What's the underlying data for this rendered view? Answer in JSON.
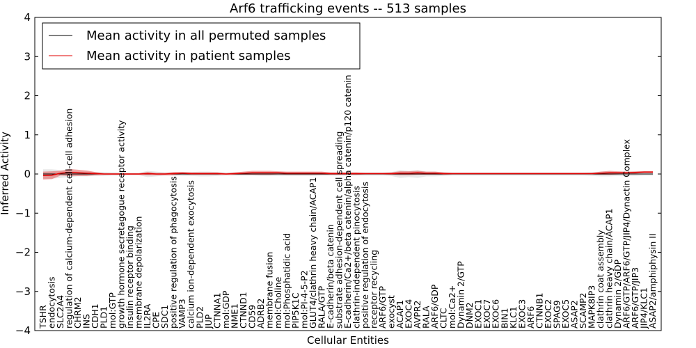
{
  "chart_data": {
    "type": "line",
    "title": "Arf6 trafficking events -- 513 samples",
    "xlabel": "Cellular Entities",
    "ylabel": "Inferred Activity",
    "ylim": [
      -4,
      4
    ],
    "yticks": [
      -4,
      -3,
      -2,
      -1,
      0,
      1,
      2,
      3,
      4
    ],
    "ytick_labels": [
      "−4",
      "−3",
      "−2",
      "−1",
      "0",
      "1",
      "2",
      "3",
      "4"
    ],
    "grid": false,
    "legend": {
      "placement": "top-left",
      "entries": [
        {
          "label": "Mean activity in all permuted samples",
          "color": "#000000"
        },
        {
          "label": "Mean activity in patient samples",
          "color": "#e00000"
        }
      ]
    },
    "categories": [
      "TSHR",
      "endocytosis",
      "SLC2A4",
      "regulation of calcium-dependent cell-cell adhesion",
      "CHRM2",
      "INS",
      "CDH1",
      "PLD1",
      "mol:GTP",
      "growth hormone secretagogue receptor activity",
      "insulin receptor binding",
      "membrane depolarization",
      "IL2RA",
      "CPE",
      "SDC1",
      "positive regulation of phagocytosis",
      "VAMP3",
      "calcium ion-dependent exocytosis",
      "PLD2",
      "JUP",
      "CTNNA1",
      "mol:GDP",
      "NME1",
      "CTNND1",
      "CD59",
      "ADRB2",
      "membrane fusion",
      "mol:Choline",
      "mol:Phosphatidic acid",
      "PIP5K1C",
      "mol:PI-4-5-P2",
      "GLUT4/clathrin heavy chain/ACAP1",
      "RALA/GTP",
      "E-cadherin/beta catenin",
      "substrate adhesion-dependent cell spreading",
      "E-cadherin/Ca2+/beta catenin/alpha catenin/p120 catenin",
      "clathrin-independent pinocytosis",
      "positive regulation of endocytosis",
      "receptor recycling",
      "ARF6/GTP",
      "exocyst",
      "ACAP1",
      "EXOC4",
      "AVPR2",
      "RALA",
      "ARF6/GDP",
      "CLTC",
      "mol:Ca2+",
      "Dynamin 2/GTP",
      "DNM2",
      "EXOC1",
      "EXOC7",
      "EXOC6",
      "BIN1",
      "KLC1",
      "EXOC3",
      "ARF6",
      "CTNNB1",
      "EXOC2",
      "SPAG9",
      "EXOC5",
      "ASAP2",
      "SCAMP2",
      "MAPK8IP3",
      "clathrin coat assembly",
      "clathrin heavy chain/ACAP1",
      "Dynamin 2/GDP",
      "ARF6/GTP/ARF6/GTP/JIP4/Dynactin Complex",
      "ARF6/GTP/JIP3",
      "JIP4/KLC1",
      "ASAP2/amphiphysin II"
    ],
    "series": [
      {
        "name": "Mean activity in all permuted samples",
        "color": "#000000",
        "values": [
          0.0,
          0.0,
          0.0,
          0.0,
          0.0,
          0.0,
          0.0,
          0.0,
          0.0,
          0.0,
          0.0,
          0.0,
          0.0,
          0.0,
          0.0,
          0.0,
          0.0,
          0.0,
          0.0,
          0.0,
          0.0,
          0.0,
          0.0,
          0.0,
          0.0,
          0.0,
          0.0,
          0.0,
          0.0,
          0.0,
          0.0,
          0.0,
          0.0,
          0.0,
          0.0,
          0.0,
          0.0,
          0.0,
          0.0,
          0.0,
          0.0,
          0.0,
          0.0,
          0.0,
          0.0,
          0.0,
          0.0,
          0.0,
          0.0,
          0.0,
          0.0,
          0.0,
          0.0,
          0.0,
          0.0,
          0.0,
          0.0,
          0.0,
          0.0,
          0.0,
          0.0,
          0.0,
          0.0,
          0.0,
          0.0,
          0.0,
          0.0,
          0.0,
          0.0,
          0.0,
          0.0
        ],
        "spread": [
          0.12,
          0.12,
          0.1,
          0.08,
          0.06,
          0.06,
          0.05,
          0.05,
          0.04,
          0.04,
          0.03,
          0.03,
          0.08,
          0.06,
          0.04,
          0.04,
          0.05,
          0.05,
          0.06,
          0.06,
          0.05,
          0.04,
          0.04,
          0.04,
          0.04,
          0.05,
          0.05,
          0.05,
          0.05,
          0.05,
          0.05,
          0.05,
          0.04,
          0.04,
          0.04,
          0.04,
          0.04,
          0.04,
          0.04,
          0.04,
          0.05,
          0.1,
          0.08,
          0.1,
          0.06,
          0.06,
          0.05,
          0.04,
          0.04,
          0.04,
          0.04,
          0.04,
          0.04,
          0.04,
          0.04,
          0.04,
          0.04,
          0.04,
          0.04,
          0.04,
          0.04,
          0.04,
          0.04,
          0.05,
          0.06,
          0.06,
          0.05,
          0.05,
          0.05,
          0.04,
          0.04
        ]
      },
      {
        "name": "Mean activity in patient samples",
        "color": "#e00000",
        "values": [
          -0.04,
          -0.03,
          0.02,
          0.04,
          0.03,
          0.02,
          0.01,
          0.0,
          0.0,
          0.0,
          0.0,
          0.0,
          0.01,
          0.0,
          0.0,
          0.01,
          0.02,
          0.01,
          0.01,
          0.01,
          0.01,
          0.0,
          0.01,
          0.02,
          0.03,
          0.03,
          0.03,
          0.03,
          0.02,
          0.02,
          0.02,
          0.02,
          0.02,
          0.01,
          0.01,
          0.01,
          0.01,
          0.01,
          0.01,
          0.01,
          0.01,
          0.02,
          0.02,
          0.03,
          0.02,
          0.02,
          0.01,
          0.01,
          0.01,
          0.01,
          0.01,
          0.01,
          0.01,
          0.01,
          0.01,
          0.01,
          0.01,
          0.01,
          0.01,
          0.01,
          0.01,
          0.01,
          0.01,
          0.01,
          0.02,
          0.03,
          0.03,
          0.03,
          0.04,
          0.05,
          0.05
        ],
        "spread": [
          0.1,
          0.1,
          0.06,
          0.09,
          0.08,
          0.07,
          0.04,
          0.02,
          0.02,
          0.02,
          0.02,
          0.02,
          0.04,
          0.03,
          0.03,
          0.04,
          0.03,
          0.03,
          0.03,
          0.03,
          0.03,
          0.02,
          0.03,
          0.04,
          0.05,
          0.05,
          0.05,
          0.04,
          0.04,
          0.04,
          0.04,
          0.04,
          0.04,
          0.03,
          0.03,
          0.03,
          0.03,
          0.02,
          0.02,
          0.02,
          0.03,
          0.05,
          0.05,
          0.05,
          0.04,
          0.04,
          0.03,
          0.02,
          0.02,
          0.02,
          0.02,
          0.02,
          0.02,
          0.02,
          0.02,
          0.02,
          0.02,
          0.02,
          0.02,
          0.02,
          0.02,
          0.02,
          0.02,
          0.02,
          0.04,
          0.05,
          0.04,
          0.03,
          0.03,
          0.02,
          0.02
        ]
      }
    ]
  }
}
